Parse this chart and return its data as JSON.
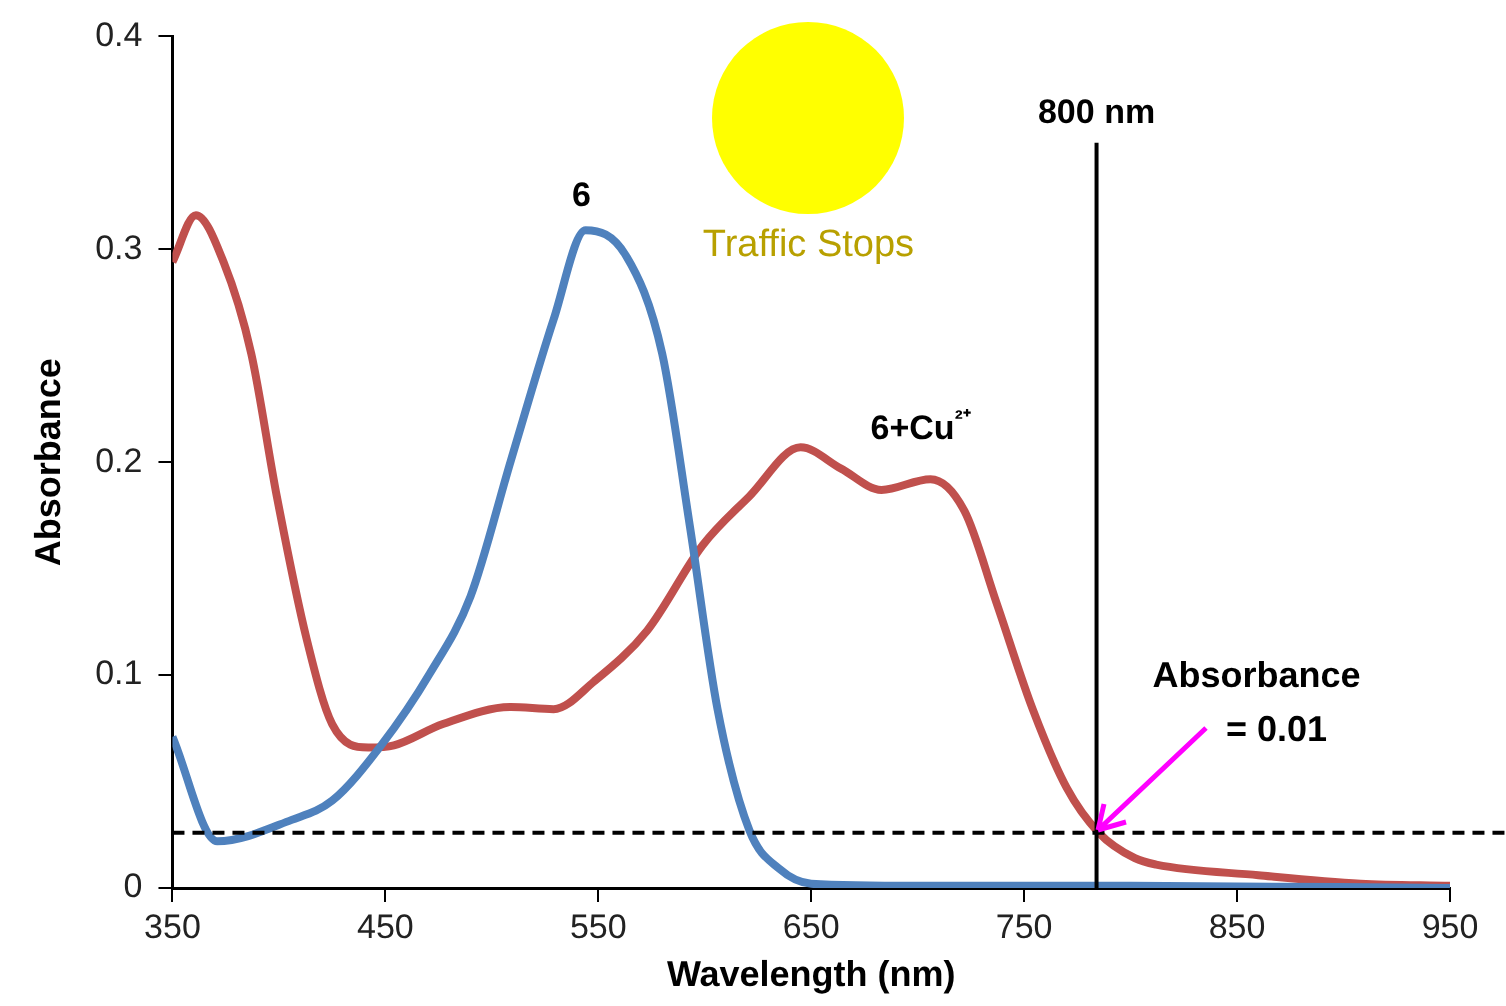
{
  "chart_data": {
    "type": "line",
    "xlabel": "Wavelength (nm)",
    "ylabel": "Absorbance",
    "xlim": [
      350,
      950
    ],
    "xticks": [
      350,
      450,
      550,
      650,
      750,
      850,
      950
    ],
    "ylim": [
      0,
      0.4
    ],
    "yticks": [
      0,
      0.1,
      0.2,
      0.3,
      0.4
    ],
    "grid": false,
    "legend": false,
    "marker": "none",
    "line_style": "solid",
    "series": [
      {
        "name": "6",
        "color": "#4f81bd",
        "x": [
          350,
          371,
          406,
          425,
          448,
          471,
          490,
          509,
          529,
          544,
          563,
          580,
          593,
          606,
          621,
          635,
          650,
          700,
          800,
          950
        ],
        "values": [
          0.071,
          0.022,
          0.032,
          0.041,
          0.067,
          0.101,
          0.137,
          0.201,
          0.267,
          0.309,
          0.297,
          0.251,
          0.17,
          0.084,
          0.027,
          0.009,
          0.002,
          0.001,
          0.001,
          0
        ]
      },
      {
        "name": "6+Cu²⁺",
        "color": "#c0504d",
        "x": [
          350,
          361,
          374,
          387,
          399,
          413,
          425,
          442,
          454,
          477,
          509,
          529,
          548,
          573,
          599,
          621,
          645,
          664,
          683,
          706,
          722,
          737,
          754,
          770,
          785,
          802,
          812,
          860,
          908,
          950
        ],
        "values": [
          0.294,
          0.316,
          0.294,
          0.251,
          0.184,
          0.117,
          0.077,
          0.066,
          0.067,
          0.077,
          0.085,
          0.084,
          0.097,
          0.121,
          0.161,
          0.184,
          0.207,
          0.197,
          0.187,
          0.192,
          0.177,
          0.134,
          0.084,
          0.047,
          0.026,
          0.014,
          0.011,
          0.006,
          0.002,
          0.001
        ]
      }
    ],
    "ref_lines": [
      {
        "axis": "x",
        "value": 784,
        "label": "800 nm",
        "color": "#000000",
        "line_style": "solid"
      },
      {
        "axis": "y",
        "value": 0.026,
        "color": "#000000",
        "line_style": "dashed"
      }
    ],
    "annotations": [
      {
        "text": "Absorbance\n= 0.01",
        "x": 784,
        "y": 0.026
      },
      "Traffic Stops"
    ]
  }
}
